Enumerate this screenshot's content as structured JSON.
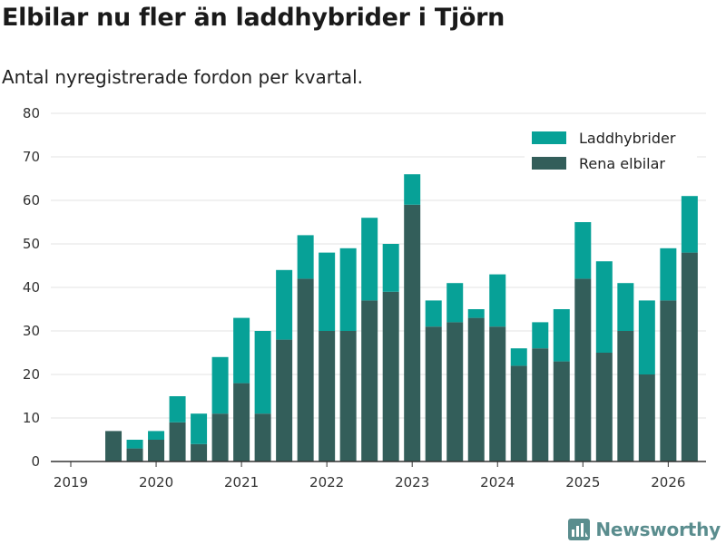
{
  "header": {
    "title": "Elbilar nu fler än laddhybrider i Tjörn",
    "subtitle": "Antal nyregistrerade fordon per kvartal."
  },
  "branding": {
    "logo_text": "Newsworthy",
    "logo_icon": "newsworthy-chart-icon"
  },
  "colors": {
    "laddhybrider": "#07a197",
    "elbilar": "#335e5a",
    "grid": "#e3e3e3",
    "axis": "#333333",
    "brand": "#5a8d8e"
  },
  "chart_data": {
    "type": "bar",
    "stacked": true,
    "title": "Elbilar nu fler än laddhybrider i Tjörn",
    "subtitle": "Antal nyregistrerade fordon per kvartal.",
    "xlabel": "",
    "ylabel": "",
    "ylim": [
      0,
      80
    ],
    "yticks": [
      0,
      10,
      20,
      30,
      40,
      50,
      60,
      70,
      80
    ],
    "x_start_year": 2019,
    "xticks": [
      "2019",
      "2020",
      "2021",
      "2022",
      "2023",
      "2024",
      "2025",
      "2026"
    ],
    "legend_position": "top-right",
    "categories": [
      "2019 Q2",
      "2019 Q3",
      "2019 Q4",
      "2020 Q1",
      "2020 Q2",
      "2020 Q3",
      "2020 Q4",
      "2021 Q1",
      "2021 Q2",
      "2021 Q3",
      "2021 Q4",
      "2022 Q1",
      "2022 Q2",
      "2022 Q3",
      "2022 Q4",
      "2023 Q1",
      "2023 Q2",
      "2023 Q3",
      "2023 Q4",
      "2024 Q1",
      "2024 Q2",
      "2024 Q3",
      "2024 Q4",
      "2025 Q1",
      "2025 Q2",
      "2025 Q3",
      "2025 Q4",
      "2026 Q1"
    ],
    "series": [
      {
        "name": "Rena elbilar",
        "values": [
          7,
          3,
          5,
          9,
          4,
          11,
          18,
          11,
          28,
          42,
          30,
          30,
          37,
          39,
          59,
          31,
          32,
          33,
          31,
          22,
          26,
          23,
          42,
          25,
          30,
          20,
          37,
          48
        ]
      },
      {
        "name": "Laddhybrider",
        "values": [
          0,
          2,
          2,
          6,
          7,
          13,
          15,
          19,
          16,
          10,
          18,
          19,
          19,
          11,
          7,
          6,
          9,
          2,
          12,
          4,
          6,
          12,
          13,
          21,
          11,
          17,
          12,
          13
        ]
      }
    ],
    "legend": [
      "Laddhybrider",
      "Rena elbilar"
    ]
  }
}
